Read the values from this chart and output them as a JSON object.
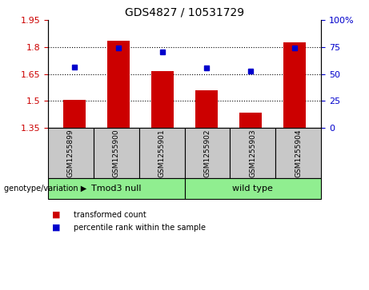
{
  "title": "GDS4827 / 10531729",
  "samples": [
    "GSM1255899",
    "GSM1255900",
    "GSM1255901",
    "GSM1255902",
    "GSM1255903",
    "GSM1255904"
  ],
  "bar_values": [
    1.505,
    1.835,
    1.665,
    1.56,
    1.435,
    1.825
  ],
  "blue_values": [
    1.688,
    1.795,
    1.775,
    1.685,
    1.668,
    1.795
  ],
  "bar_bottom": 1.35,
  "ylim_left": [
    1.35,
    1.95
  ],
  "ylim_right": [
    0,
    100
  ],
  "yticks_left": [
    1.35,
    1.5,
    1.65,
    1.8,
    1.95
  ],
  "yticks_right": [
    0,
    25,
    50,
    75,
    100
  ],
  "ytick_labels_left": [
    "1.35",
    "1.5",
    "1.65",
    "1.8",
    "1.95"
  ],
  "ytick_labels_right": [
    "0",
    "25",
    "50",
    "75",
    "100%"
  ],
  "hlines": [
    1.5,
    1.65,
    1.8
  ],
  "bar_color": "#cc0000",
  "blue_color": "#0000cc",
  "group1_label": "Tmod3 null",
  "group2_label": "wild type",
  "group_label_prefix": "genotype/variation",
  "group_color": "#90ee90",
  "sample_box_color": "#c8c8c8",
  "legend_red_label": "transformed count",
  "legend_blue_label": "percentile rank within the sample",
  "bar_width": 0.5
}
